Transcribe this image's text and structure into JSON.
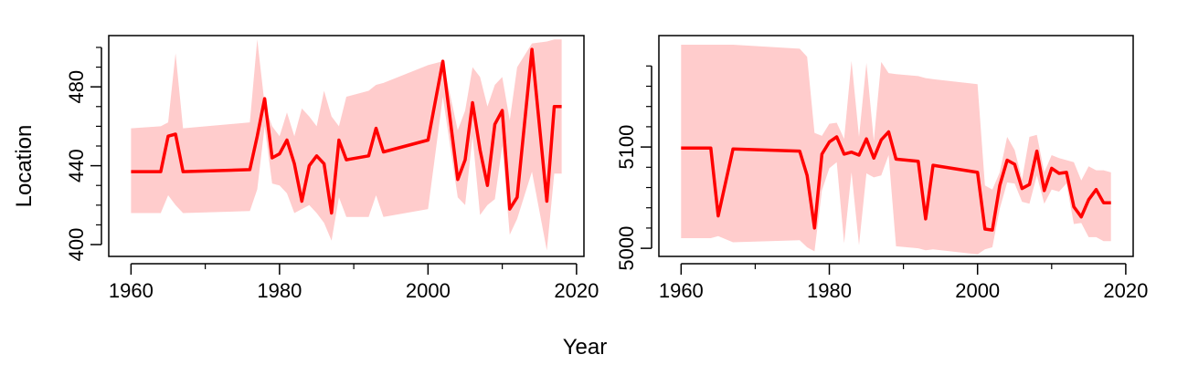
{
  "figure": {
    "xlabel": "Year",
    "ylabel": "Location"
  },
  "colors": {
    "line": "#ff0000",
    "band": "#ffcccc",
    "axis": "#000000"
  },
  "chart_data": [
    {
      "type": "line",
      "xlim": [
        1957,
        2021
      ],
      "ylim": [
        394,
        506
      ],
      "xticks": [
        1960,
        1980,
        2000,
        2020
      ],
      "xtick_labels": [
        "1960",
        "1980",
        "2000",
        "2020"
      ],
      "xminor": [
        1970,
        1990,
        2010
      ],
      "yticks": [
        400,
        440,
        480
      ],
      "ytick_labels": [
        "400",
        "440",
        "480"
      ],
      "yminor": [
        410,
        420,
        430,
        450,
        460,
        470,
        490,
        500
      ],
      "series": [
        {
          "x": [
            1960,
            1964,
            1965,
            1966,
            1967,
            1976,
            1977,
            1978,
            1979,
            1980,
            1981,
            1982,
            1983,
            1984,
            1985,
            1986,
            1987,
            1988,
            1989,
            1992,
            1993,
            1994,
            2000,
            2002,
            2004,
            2005,
            2006,
            2007,
            2008,
            2009,
            2010,
            2011,
            2012,
            2014,
            2016,
            2017,
            2018
          ],
          "y": [
            437,
            437,
            455,
            456,
            437,
            438,
            455,
            474,
            444,
            446,
            453,
            441,
            422,
            440,
            445,
            441,
            416,
            453,
            443,
            445,
            459,
            447,
            453,
            493,
            433,
            443,
            472,
            448,
            430,
            461,
            468,
            418,
            424,
            499,
            422,
            470,
            470
          ],
          "upper": [
            459,
            460,
            462,
            497,
            459,
            462,
            504,
            471,
            460,
            455,
            467,
            455,
            469,
            465,
            460,
            478,
            465,
            460,
            475,
            478,
            481,
            482,
            491,
            493,
            458,
            468,
            490,
            485,
            470,
            481,
            485,
            463,
            490,
            502,
            503,
            504,
            504
          ],
          "lower": [
            416,
            416,
            425,
            420,
            416,
            417,
            428,
            460,
            431,
            430,
            426,
            416,
            418,
            420,
            416,
            411,
            402,
            424,
            414,
            414,
            425,
            414,
            418,
            475,
            424,
            420,
            455,
            415,
            420,
            423,
            450,
            405,
            413,
            437,
            397,
            436,
            436
          ]
        }
      ]
    },
    {
      "type": "line",
      "xlim": [
        1957,
        2021
      ],
      "ylim": [
        4992,
        5210
      ],
      "xticks": [
        1960,
        1980,
        2000,
        2020
      ],
      "xtick_labels": [
        "1960",
        "1980",
        "2000",
        "2020"
      ],
      "xminor": [
        1970,
        1990,
        2010
      ],
      "yticks": [
        5000,
        5100
      ],
      "ytick_labels": [
        "5000",
        "5100"
      ],
      "yminor": [
        5020,
        5040,
        5060,
        5080,
        5120,
        5140,
        5160,
        5180
      ],
      "series": [
        {
          "x": [
            1960,
            1964,
            1965,
            1967,
            1976,
            1977,
            1978,
            1979,
            1980,
            1981,
            1982,
            1983,
            1984,
            1985,
            1986,
            1987,
            1988,
            1989,
            1992,
            1993,
            1994,
            2000,
            2001,
            2002,
            2003,
            2004,
            2005,
            2006,
            2007,
            2008,
            2009,
            2010,
            2011,
            2012,
            2013,
            2014,
            2015,
            2016,
            2017,
            2018
          ],
          "y": [
            5099,
            5099,
            5032,
            5098,
            5096,
            5072,
            5020,
            5093,
            5105,
            5110,
            5093,
            5095,
            5092,
            5108,
            5089,
            5107,
            5115,
            5088,
            5086,
            5029,
            5082,
            5075,
            5019,
            5018,
            5062,
            5087,
            5083,
            5059,
            5063,
            5096,
            5057,
            5079,
            5074,
            5075,
            5041,
            5031,
            5048,
            5058,
            5045,
            5045
          ],
          "upper": [
            5201,
            5201,
            5201,
            5201,
            5197,
            5189,
            5114,
            5111,
            5123,
            5124,
            5108,
            5185,
            5110,
            5183,
            5106,
            5184,
            5173,
            5172,
            5170,
            5168,
            5167,
            5162,
            5062,
            5058,
            5075,
            5110,
            5097,
            5068,
            5110,
            5112,
            5075,
            5092,
            5089,
            5087,
            5085,
            5067,
            5081,
            5077,
            5077,
            5075
          ],
          "lower": [
            5010,
            5010,
            5012,
            5006,
            5008,
            5001,
            4997,
            5057,
            5079,
            5085,
            5005,
            5075,
            5003,
            5074,
            5070,
            5072,
            5092,
            5002,
            5000,
            4998,
            4999,
            4994,
            4999,
            5001,
            5039,
            5065,
            5064,
            5046,
            5044,
            5072,
            5044,
            5058,
            5056,
            5064,
            5024,
            5025,
            5011,
            5011,
            5007,
            5007
          ]
        }
      ]
    }
  ]
}
